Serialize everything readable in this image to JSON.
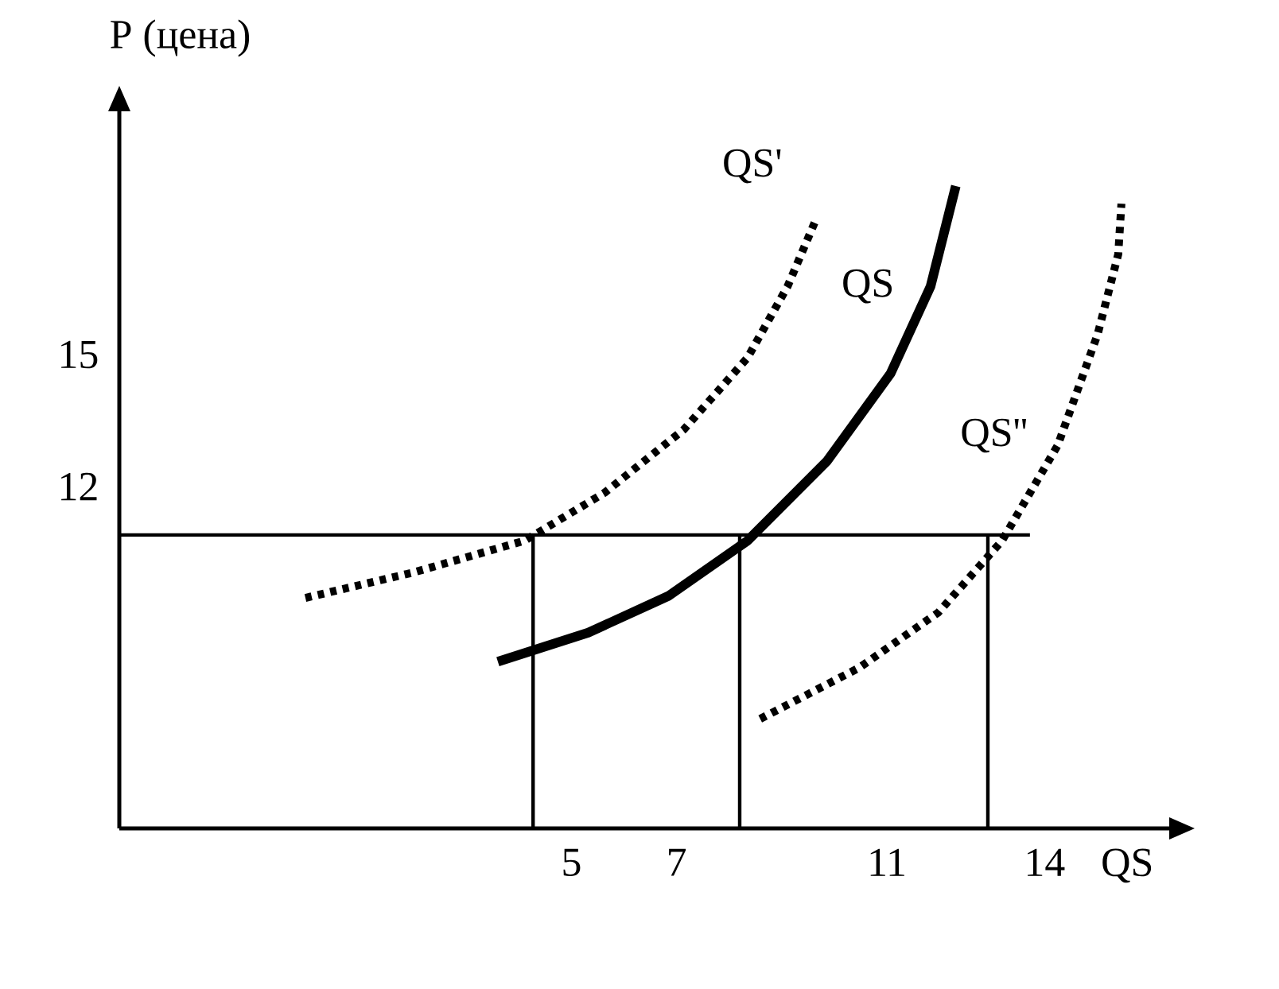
{
  "chart_data": {
    "type": "line",
    "xlabel": "QS",
    "ylabel": "P (цена)",
    "xlim": [
      -3.6,
      16.37
    ],
    "ylim": [
      4.23,
      20.53
    ],
    "xticks": [
      5,
      7,
      11,
      14
    ],
    "yticks": [
      12,
      15
    ],
    "ref_lines": [
      {
        "axis": "y",
        "value": 10.9
      },
      {
        "axis": "x",
        "value": 4.27
      },
      {
        "axis": "x",
        "value": 8.2
      },
      {
        "axis": "x",
        "value": 12.92
      }
    ],
    "series": [
      {
        "name": "QS'",
        "color": "#000000",
        "line_style": "dotted",
        "x": [
          -0.06,
          2.0,
          4.11,
          5.63,
          7.14,
          8.35,
          9.11,
          9.65
        ],
        "values": [
          9.47,
          10.05,
          10.77,
          11.86,
          13.3,
          14.93,
          16.55,
          18.07
        ]
      },
      {
        "name": "QS",
        "color": "#000000",
        "line_style": "solid",
        "x": [
          3.6,
          5.32,
          6.84,
          8.35,
          9.86,
          11.07,
          11.83,
          12.31
        ],
        "values": [
          8.02,
          8.68,
          9.51,
          10.77,
          12.58,
          14.57,
          16.55,
          18.83
        ]
      },
      {
        "name": "QS''",
        "color": "#000000",
        "line_style": "dotted",
        "x": [
          8.59,
          10.47,
          11.98,
          13.19,
          14.25,
          15.01,
          15.4,
          15.46
        ],
        "values": [
          6.72,
          7.88,
          9.14,
          10.77,
          12.94,
          15.47,
          17.28,
          18.43
        ]
      }
    ]
  }
}
